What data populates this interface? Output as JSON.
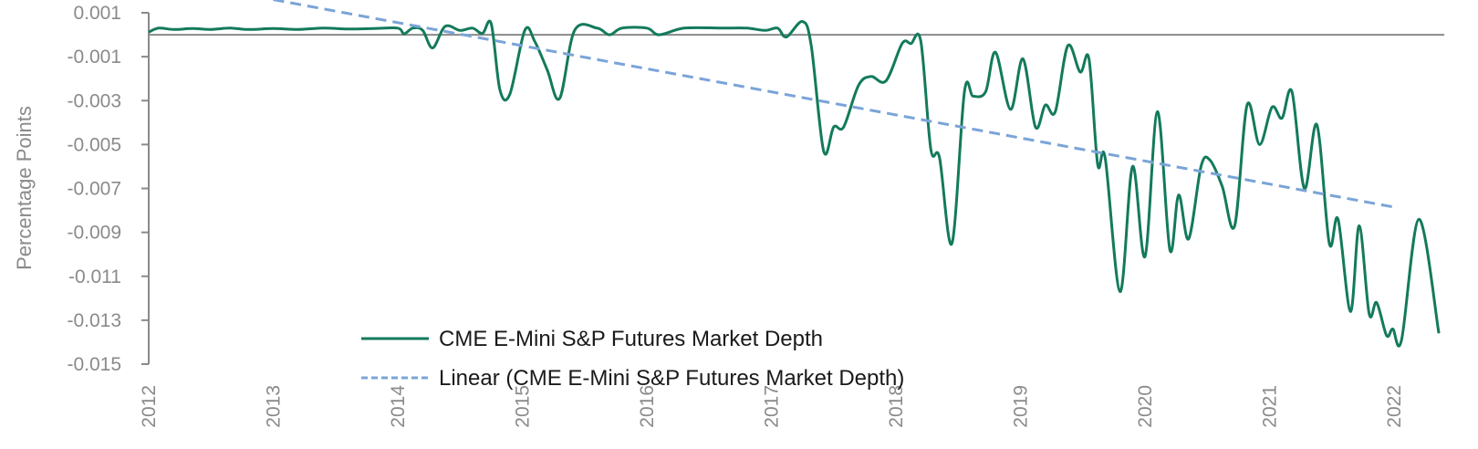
{
  "chart_data": {
    "type": "line",
    "title": "",
    "xlabel": "",
    "ylabel": "Percentage Points",
    "ylim": [
      -0.015,
      0.001
    ],
    "xlim": [
      2012,
      2022
    ],
    "yticks": [
      "0.001",
      "-0.001",
      "-0.003",
      "-0.005",
      "-0.007",
      "-0.009",
      "-0.011",
      "-0.013",
      "-0.015"
    ],
    "ytick_values": [
      0.001,
      -0.001,
      -0.003,
      -0.005,
      -0.007,
      -0.009,
      -0.011,
      -0.013,
      -0.015
    ],
    "xticks": [
      "2012",
      "2013",
      "2014",
      "2015",
      "2016",
      "2017",
      "2018",
      "2019",
      "2020",
      "2021",
      "2022"
    ],
    "grid": false,
    "zero_line": true,
    "legend_position": "lower-center",
    "colors": {
      "series": "#137a5c",
      "trend": "#7aa4d8",
      "axis": "#8a8a8a",
      "zero_line": "#8a8a8a"
    },
    "series": [
      {
        "name": "CME E-Mini S&P Futures Market Depth",
        "style": "solid",
        "color": "#137a5c",
        "points": [
          [
            2012.0,
            0.00012
          ],
          [
            2012.08,
            0.0003
          ],
          [
            2012.2,
            0.00024
          ],
          [
            2012.35,
            0.00028
          ],
          [
            2012.5,
            0.00024
          ],
          [
            2012.65,
            0.0003
          ],
          [
            2012.8,
            0.00024
          ],
          [
            2013.0,
            0.00028
          ],
          [
            2013.2,
            0.00024
          ],
          [
            2013.4,
            0.0003
          ],
          [
            2013.6,
            0.00026
          ],
          [
            2013.8,
            0.00028
          ],
          [
            2014.0,
            0.0003
          ],
          [
            2014.05,
            4e-05
          ],
          [
            2014.12,
            0.0003
          ],
          [
            2014.2,
            0.0002
          ],
          [
            2014.28,
            -0.0006
          ],
          [
            2014.38,
            0.00038
          ],
          [
            2014.5,
            0.0002
          ],
          [
            2014.6,
            0.0003
          ],
          [
            2014.68,
            6e-05
          ],
          [
            2014.75,
            0.0005
          ],
          [
            2014.82,
            -0.0025
          ],
          [
            2014.9,
            -0.0027
          ],
          [
            2015.02,
            0.0002
          ],
          [
            2015.1,
            -0.0003
          ],
          [
            2015.2,
            -0.0016
          ],
          [
            2015.3,
            -0.0029
          ],
          [
            2015.42,
            0.0002
          ],
          [
            2015.6,
            0.0003
          ],
          [
            2015.7,
            0.0
          ],
          [
            2015.8,
            0.0003
          ],
          [
            2016.0,
            0.0003
          ],
          [
            2016.1,
            0.0
          ],
          [
            2016.3,
            0.0003
          ],
          [
            2016.6,
            0.0003
          ],
          [
            2016.8,
            0.0003
          ],
          [
            2016.95,
            0.0002
          ],
          [
            2017.05,
            0.0003
          ],
          [
            2017.12,
            -0.0001
          ],
          [
            2017.25,
            0.0006
          ],
          [
            2017.32,
            -0.0005
          ],
          [
            2017.42,
            -0.0053
          ],
          [
            2017.5,
            -0.0042
          ],
          [
            2017.58,
            -0.0042
          ],
          [
            2017.7,
            -0.0023
          ],
          [
            2017.8,
            -0.0019
          ],
          [
            2017.92,
            -0.0021
          ],
          [
            2018.05,
            -0.0004
          ],
          [
            2018.12,
            -0.0004
          ],
          [
            2018.2,
            -0.0003
          ],
          [
            2018.28,
            -0.0052
          ],
          [
            2018.35,
            -0.0056
          ],
          [
            2018.45,
            -0.0095
          ],
          [
            2018.55,
            -0.0026
          ],
          [
            2018.62,
            -0.0028
          ],
          [
            2018.72,
            -0.0026
          ],
          [
            2018.8,
            -0.0008
          ],
          [
            2018.92,
            -0.0034
          ],
          [
            2019.02,
            -0.0011
          ],
          [
            2019.12,
            -0.0042
          ],
          [
            2019.2,
            -0.0032
          ],
          [
            2019.28,
            -0.0035
          ],
          [
            2019.38,
            -0.0005
          ],
          [
            2019.48,
            -0.0017
          ],
          [
            2019.55,
            -0.0011
          ],
          [
            2019.62,
            -0.0059
          ],
          [
            2019.68,
            -0.0056
          ],
          [
            2019.8,
            -0.0117
          ],
          [
            2019.9,
            -0.006
          ],
          [
            2020.0,
            -0.0101
          ],
          [
            2020.1,
            -0.0035
          ],
          [
            2020.2,
            -0.0098
          ],
          [
            2020.27,
            -0.0073
          ],
          [
            2020.35,
            -0.0093
          ],
          [
            2020.45,
            -0.006
          ],
          [
            2020.52,
            -0.0057
          ],
          [
            2020.62,
            -0.0069
          ],
          [
            2020.72,
            -0.0087
          ],
          [
            2020.82,
            -0.0032
          ],
          [
            2020.92,
            -0.005
          ],
          [
            2021.02,
            -0.0033
          ],
          [
            2021.1,
            -0.0038
          ],
          [
            2021.18,
            -0.0026
          ],
          [
            2021.28,
            -0.007
          ],
          [
            2021.38,
            -0.0041
          ],
          [
            2021.48,
            -0.0095
          ],
          [
            2021.55,
            -0.0084
          ],
          [
            2021.65,
            -0.0126
          ],
          [
            2021.72,
            -0.0087
          ],
          [
            2021.8,
            -0.0127
          ],
          [
            2021.86,
            -0.0122
          ],
          [
            2021.94,
            -0.0137
          ],
          [
            2021.99,
            -0.0134
          ],
          [
            2022.06,
            -0.0139
          ],
          [
            2022.2,
            -0.0084
          ],
          [
            2022.36,
            -0.0136
          ]
        ]
      },
      {
        "name": "Linear (CME E-Mini S&P Futures Market Depth)",
        "style": "dashed",
        "color": "#7aa4d8",
        "points": [
          [
            2013.0,
            0.0016
          ],
          [
            2022.0,
            -0.00785
          ]
        ]
      }
    ],
    "legend": [
      {
        "label": "CME E-Mini S&P Futures Market Depth",
        "style": "solid",
        "color": "#137a5c"
      },
      {
        "label": "Linear (CME E-Mini S&P Futures Market Depth)",
        "style": "dashed",
        "color": "#7aa4d8"
      }
    ]
  }
}
